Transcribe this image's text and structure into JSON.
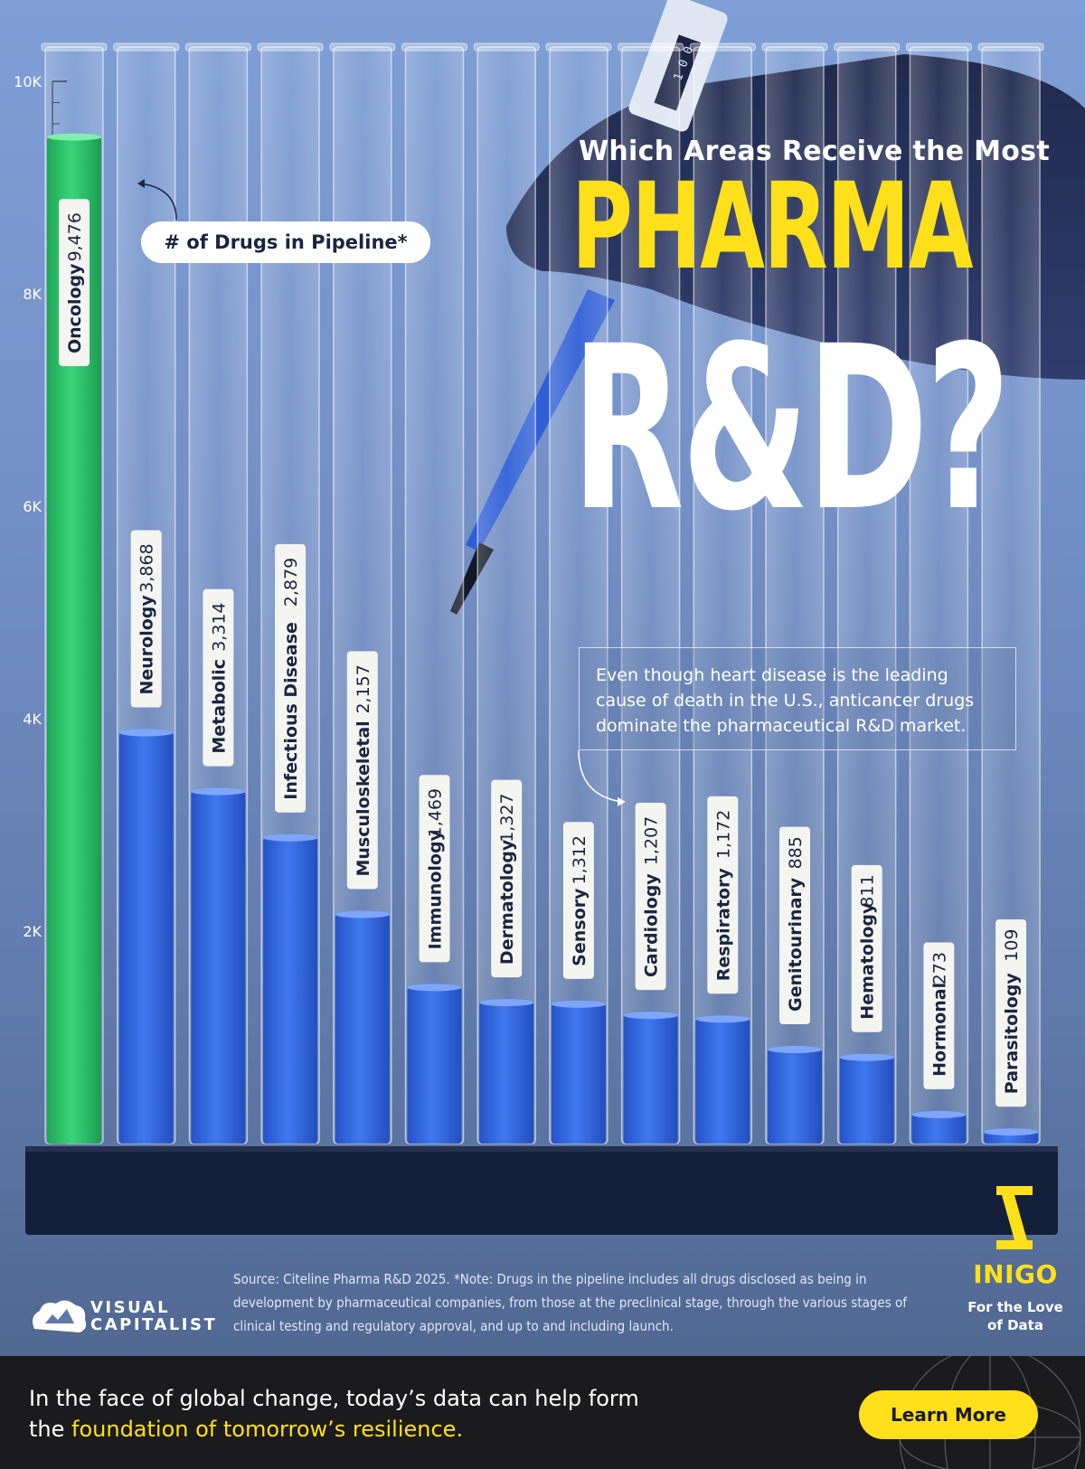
{
  "header": {
    "title_small": "Which Areas Receive the Most",
    "title_pharma": "PHARMA",
    "title_rd": "R&D?"
  },
  "legend": {
    "label": "# of Drugs in Pipeline*"
  },
  "annotation": {
    "text": "Even though heart disease is the leading cause of death in the U.S., anticancer drugs dominate the pharmaceutical R&D market."
  },
  "pipette_display": "1 0 0",
  "source": "Source: Citeline Pharma R&D 2025. *Note: Drugs in the pipeline includes all drugs disclosed as being in development by pharmaceutical companies, from those at the preclinical stage, through the various stages of clinical testing and regulatory approval, and up to and including launch.",
  "brand": {
    "vc_line1": "VISUAL",
    "vc_line2": "CAPITALIST",
    "inigo_name": "INIGO",
    "inigo_tag": "For the Love of Data"
  },
  "footer": {
    "text_plain": "In the face of global change, today’s data can help form the ",
    "text_highlight": "foundation of tomorrow’s resilience.",
    "button_label": "Learn More"
  },
  "colors": {
    "highlight_bar": "#2ec46a",
    "bar": "#3366e0",
    "accent_yellow": "#ffe01a",
    "background": "#7390c6"
  },
  "chart_data": {
    "type": "bar",
    "orientation": "vertical",
    "categories": [
      "Oncology",
      "Neurology",
      "Metabolic",
      "Infectious Disease",
      "Musculoskeletal",
      "Immunology",
      "Dermatology",
      "Sensory",
      "Cardiology",
      "Respiratory",
      "Genitourinary",
      "Hematology",
      "Hormonal",
      "Parasitology"
    ],
    "values": [
      9476,
      3868,
      3314,
      2879,
      2157,
      1469,
      1327,
      1312,
      1207,
      1172,
      885,
      811,
      273,
      109
    ],
    "value_labels": [
      "9,476",
      "3,868",
      "3,314",
      "2,879",
      "2,157",
      "1,469",
      "1,327",
      "1,312",
      "1,207",
      "1,172",
      "885",
      "811",
      "273",
      "109"
    ],
    "highlight_category": "Oncology",
    "ylim": [
      0,
      10000
    ],
    "yticks": [
      2000,
      4000,
      6000,
      8000,
      10000
    ],
    "ytick_labels": [
      "2K",
      "4K",
      "6K",
      "8K",
      "10K"
    ],
    "grid": false
  }
}
